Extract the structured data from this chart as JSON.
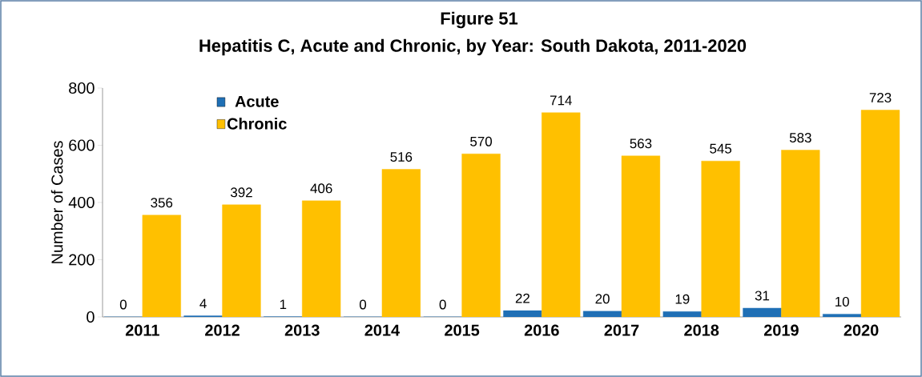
{
  "chart_data": {
    "type": "bar",
    "title": "Figure 51",
    "subtitle": "Hepatitis C, Acute and Chronic, by Year: South Dakota, 2011-2020",
    "ylabel": "Number of Cases",
    "categories": [
      "2011",
      "2012",
      "2013",
      "2014",
      "2015",
      "2016",
      "2017",
      "2018",
      "2019",
      "2020"
    ],
    "series": [
      {
        "name": "Acute",
        "color": "#1f6fb5",
        "values": [
          0,
          4,
          1,
          0,
          0,
          22,
          20,
          19,
          31,
          10
        ]
      },
      {
        "name": "Chronic",
        "color": "#ffc000",
        "values": [
          356,
          392,
          406,
          516,
          570,
          714,
          563,
          545,
          583,
          723
        ]
      }
    ],
    "ylim": [
      0,
      800
    ],
    "yticks": [
      0,
      200,
      400,
      600,
      800
    ],
    "data_labels": true,
    "legend": "top left"
  }
}
